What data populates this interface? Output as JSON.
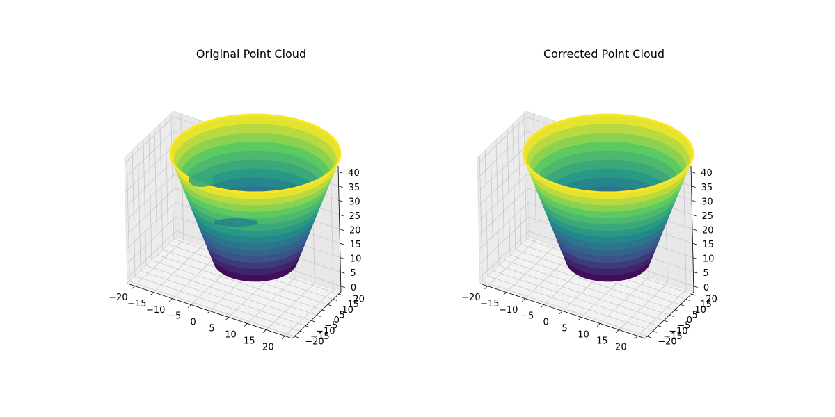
{
  "figure": {
    "background": "#ffffff",
    "pane_color": "#f2f2f2",
    "grid_color": "#c8c8c8",
    "colormap": "viridis",
    "colormap_stops": [
      "#440154",
      "#3b528b",
      "#21908c",
      "#5dc963",
      "#fde725"
    ]
  },
  "chart_data": [
    {
      "type": "scatter3d",
      "title": "Original Point Cloud",
      "xlabel": "",
      "ylabel": "",
      "zlabel": "",
      "xlim": [
        -22,
        22
      ],
      "ylim": [
        -22,
        22
      ],
      "zlim": [
        -2,
        42
      ],
      "x_ticks": [
        "−20",
        "−15",
        "−10",
        "−5",
        "0",
        "5",
        "10",
        "15",
        "20"
      ],
      "y_ticks": [
        "−20",
        "−15",
        "−10",
        "−5",
        "0",
        "5",
        "10",
        "15",
        "20"
      ],
      "z_ticks": [
        "0",
        "5",
        "10",
        "15",
        "20",
        "25",
        "30",
        "35",
        "40"
      ],
      "grid": true,
      "shape": "truncated cone (frustum)",
      "radius_bottom": 10,
      "radius_top": 20,
      "z_range": [
        0,
        40
      ],
      "color_by": "z",
      "deformed": true
    },
    {
      "type": "scatter3d",
      "title": "Corrected Point Cloud",
      "xlabel": "",
      "ylabel": "",
      "zlabel": "",
      "xlim": [
        -22,
        22
      ],
      "ylim": [
        -22,
        22
      ],
      "zlim": [
        -2,
        42
      ],
      "x_ticks": [
        "−20",
        "−15",
        "−10",
        "−5",
        "0",
        "5",
        "10",
        "15",
        "20"
      ],
      "y_ticks": [
        "−20",
        "−15",
        "−10",
        "−5",
        "0",
        "5",
        "10",
        "15",
        "20"
      ],
      "z_ticks": [
        "0",
        "5",
        "10",
        "15",
        "20",
        "25",
        "30",
        "35",
        "40"
      ],
      "grid": true,
      "shape": "truncated cone (frustum)",
      "radius_bottom": 10,
      "radius_top": 20,
      "z_range": [
        0,
        40
      ],
      "color_by": "z",
      "deformed": false
    }
  ]
}
